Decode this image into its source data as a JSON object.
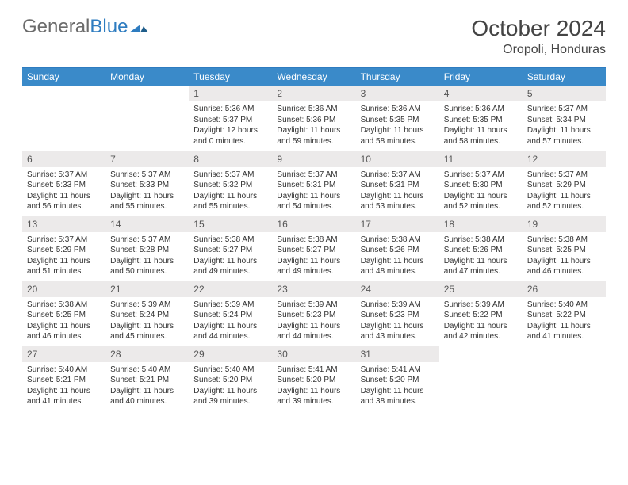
{
  "brand": {
    "part1": "General",
    "part2": "Blue"
  },
  "title": "October 2024",
  "location": "Oropoli, Honduras",
  "colors": {
    "header_bg": "#3a8ac9",
    "border": "#2e7cc0",
    "daynum_bg": "#eceaea",
    "text": "#333333",
    "logo_gray": "#6b6b6b"
  },
  "weekdays": [
    "Sunday",
    "Monday",
    "Tuesday",
    "Wednesday",
    "Thursday",
    "Friday",
    "Saturday"
  ],
  "weeks": [
    [
      null,
      null,
      {
        "n": "1",
        "sr": "5:36 AM",
        "ss": "5:37 PM",
        "dl": "12 hours and 0 minutes."
      },
      {
        "n": "2",
        "sr": "5:36 AM",
        "ss": "5:36 PM",
        "dl": "11 hours and 59 minutes."
      },
      {
        "n": "3",
        "sr": "5:36 AM",
        "ss": "5:35 PM",
        "dl": "11 hours and 58 minutes."
      },
      {
        "n": "4",
        "sr": "5:36 AM",
        "ss": "5:35 PM",
        "dl": "11 hours and 58 minutes."
      },
      {
        "n": "5",
        "sr": "5:37 AM",
        "ss": "5:34 PM",
        "dl": "11 hours and 57 minutes."
      }
    ],
    [
      {
        "n": "6",
        "sr": "5:37 AM",
        "ss": "5:33 PM",
        "dl": "11 hours and 56 minutes."
      },
      {
        "n": "7",
        "sr": "5:37 AM",
        "ss": "5:33 PM",
        "dl": "11 hours and 55 minutes."
      },
      {
        "n": "8",
        "sr": "5:37 AM",
        "ss": "5:32 PM",
        "dl": "11 hours and 55 minutes."
      },
      {
        "n": "9",
        "sr": "5:37 AM",
        "ss": "5:31 PM",
        "dl": "11 hours and 54 minutes."
      },
      {
        "n": "10",
        "sr": "5:37 AM",
        "ss": "5:31 PM",
        "dl": "11 hours and 53 minutes."
      },
      {
        "n": "11",
        "sr": "5:37 AM",
        "ss": "5:30 PM",
        "dl": "11 hours and 52 minutes."
      },
      {
        "n": "12",
        "sr": "5:37 AM",
        "ss": "5:29 PM",
        "dl": "11 hours and 52 minutes."
      }
    ],
    [
      {
        "n": "13",
        "sr": "5:37 AM",
        "ss": "5:29 PM",
        "dl": "11 hours and 51 minutes."
      },
      {
        "n": "14",
        "sr": "5:37 AM",
        "ss": "5:28 PM",
        "dl": "11 hours and 50 minutes."
      },
      {
        "n": "15",
        "sr": "5:38 AM",
        "ss": "5:27 PM",
        "dl": "11 hours and 49 minutes."
      },
      {
        "n": "16",
        "sr": "5:38 AM",
        "ss": "5:27 PM",
        "dl": "11 hours and 49 minutes."
      },
      {
        "n": "17",
        "sr": "5:38 AM",
        "ss": "5:26 PM",
        "dl": "11 hours and 48 minutes."
      },
      {
        "n": "18",
        "sr": "5:38 AM",
        "ss": "5:26 PM",
        "dl": "11 hours and 47 minutes."
      },
      {
        "n": "19",
        "sr": "5:38 AM",
        "ss": "5:25 PM",
        "dl": "11 hours and 46 minutes."
      }
    ],
    [
      {
        "n": "20",
        "sr": "5:38 AM",
        "ss": "5:25 PM",
        "dl": "11 hours and 46 minutes."
      },
      {
        "n": "21",
        "sr": "5:39 AM",
        "ss": "5:24 PM",
        "dl": "11 hours and 45 minutes."
      },
      {
        "n": "22",
        "sr": "5:39 AM",
        "ss": "5:24 PM",
        "dl": "11 hours and 44 minutes."
      },
      {
        "n": "23",
        "sr": "5:39 AM",
        "ss": "5:23 PM",
        "dl": "11 hours and 44 minutes."
      },
      {
        "n": "24",
        "sr": "5:39 AM",
        "ss": "5:23 PM",
        "dl": "11 hours and 43 minutes."
      },
      {
        "n": "25",
        "sr": "5:39 AM",
        "ss": "5:22 PM",
        "dl": "11 hours and 42 minutes."
      },
      {
        "n": "26",
        "sr": "5:40 AM",
        "ss": "5:22 PM",
        "dl": "11 hours and 41 minutes."
      }
    ],
    [
      {
        "n": "27",
        "sr": "5:40 AM",
        "ss": "5:21 PM",
        "dl": "11 hours and 41 minutes."
      },
      {
        "n": "28",
        "sr": "5:40 AM",
        "ss": "5:21 PM",
        "dl": "11 hours and 40 minutes."
      },
      {
        "n": "29",
        "sr": "5:40 AM",
        "ss": "5:20 PM",
        "dl": "11 hours and 39 minutes."
      },
      {
        "n": "30",
        "sr": "5:41 AM",
        "ss": "5:20 PM",
        "dl": "11 hours and 39 minutes."
      },
      {
        "n": "31",
        "sr": "5:41 AM",
        "ss": "5:20 PM",
        "dl": "11 hours and 38 minutes."
      },
      null,
      null
    ]
  ]
}
